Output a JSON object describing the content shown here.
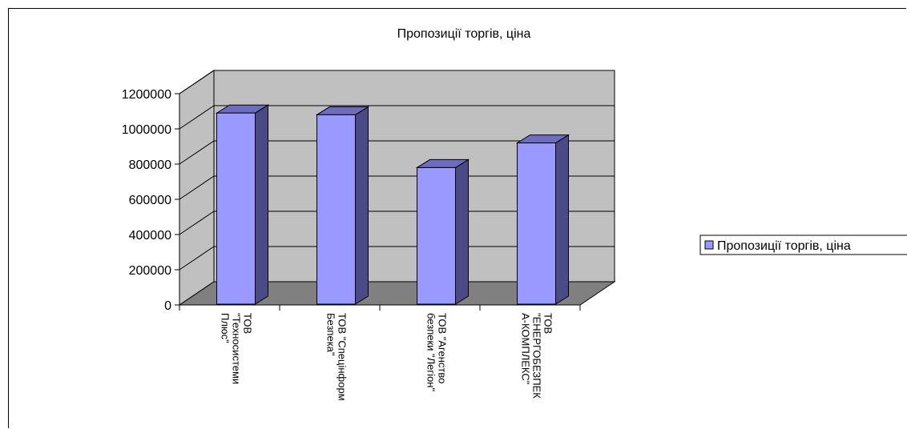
{
  "chart_data": {
    "type": "bar",
    "title": "Пропозиції торгів, ціна",
    "xlabel": "",
    "ylabel": "",
    "categories": [
      [
        "ТОВ",
        "\"Техносистеми",
        "Плюс\""
      ],
      [
        "ТОВ \"Спецінформ",
        "Безпека\""
      ],
      [
        "ТОВ \"Агенство",
        "безпеки \"Легіон\""
      ],
      [
        "ТОВ",
        "\"ЕНЕРГОБЕЗПЕК",
        "А-КОМПЛЕКС\""
      ]
    ],
    "series": [
      {
        "name": "Пропозиції торгів, ціна",
        "values": [
          1090000,
          1080000,
          780000,
          920000
        ]
      }
    ],
    "ylim": [
      0,
      1200000
    ],
    "yticks": [
      "0",
      "200000",
      "400000",
      "600000",
      "800000",
      "1000000",
      "1200000"
    ],
    "grid": true,
    "legend_position": "right",
    "colors": {
      "bar_front": "#9999ff",
      "bar_side": "#4a4a86",
      "bar_top": "#6d6dc0",
      "back_wall": "#c0c0c0",
      "side_wall": "#c0c0c0",
      "floor": "#808080"
    }
  }
}
